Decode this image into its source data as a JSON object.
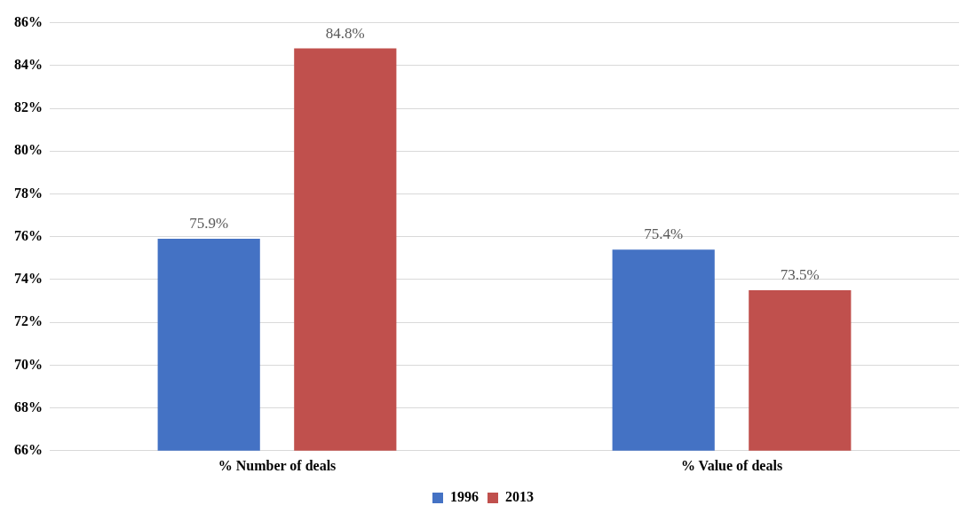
{
  "chart_data": {
    "type": "bar",
    "categories": [
      "% Number of deals",
      "% Value of deals"
    ],
    "series": [
      {
        "name": "1996",
        "color": "#4472c4",
        "values": [
          75.9,
          75.4
        ],
        "value_labels": [
          "75.9%",
          "75.4%"
        ]
      },
      {
        "name": "2013",
        "color": "#c0504d",
        "values": [
          84.8,
          73.5
        ],
        "value_labels": [
          "84.8%",
          "73.5%"
        ]
      }
    ],
    "ylim": [
      66,
      86
    ],
    "yticks": [
      {
        "value": 66,
        "label": "66%"
      },
      {
        "value": 68,
        "label": "68%"
      },
      {
        "value": 70,
        "label": "70%"
      },
      {
        "value": 72,
        "label": "72%"
      },
      {
        "value": 74,
        "label": "74%"
      },
      {
        "value": 76,
        "label": "76%"
      },
      {
        "value": 78,
        "label": "78%"
      },
      {
        "value": 80,
        "label": "80%"
      },
      {
        "value": 82,
        "label": "82%"
      },
      {
        "value": 84,
        "label": "84%"
      },
      {
        "value": 86,
        "label": "86%"
      }
    ],
    "grid": "y",
    "legend": "bottom"
  }
}
